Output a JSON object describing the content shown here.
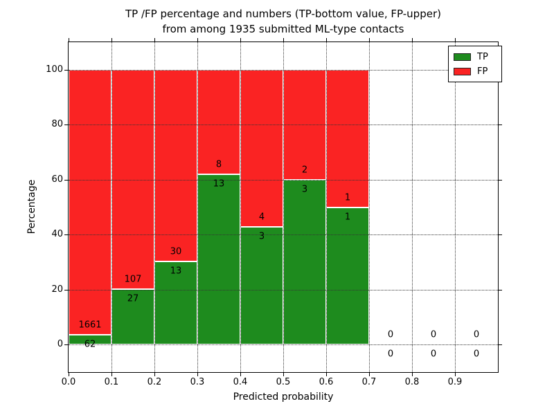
{
  "title": {
    "line1": "TP /FP percentage and numbers (TP-bottom value, FP-upper)",
    "line2": "from among 1935 submitted ML-type contacts"
  },
  "chart_data": {
    "type": "bar",
    "stacked": true,
    "title": "TP /FP percentage and numbers (TP-bottom value, FP-upper) from among 1935 submitted ML-type contacts",
    "xlabel": "Predicted probability",
    "ylabel": "Percentage",
    "bin_width": 0.1,
    "bin_starts": [
      0.0,
      0.1,
      0.2,
      0.3,
      0.4,
      0.5,
      0.6,
      0.7,
      0.8,
      0.9
    ],
    "series": [
      {
        "name": "TP",
        "color": "#1e8b1e",
        "counts": [
          62,
          27,
          13,
          13,
          3,
          3,
          1,
          0,
          0,
          0
        ]
      },
      {
        "name": "FP",
        "color": "#fa2323",
        "counts": [
          1661,
          107,
          30,
          8,
          4,
          2,
          1,
          0,
          0,
          0
        ]
      }
    ],
    "tp_percent": [
      3.6,
      20.1,
      30.2,
      61.9,
      42.9,
      60.0,
      50.0,
      0,
      0,
      0
    ],
    "x_ticks": [
      "0.0",
      "0.1",
      "0.2",
      "0.3",
      "0.4",
      "0.5",
      "0.6",
      "0.7",
      "0.8",
      "0.9"
    ],
    "y_ticks": [
      0,
      20,
      40,
      60,
      80,
      100
    ],
    "xlim": [
      0.0,
      1.0
    ],
    "ylim": [
      -10,
      110
    ],
    "grid": "dotted",
    "legend": {
      "position": "upper right",
      "entries": [
        "TP",
        "FP"
      ]
    }
  }
}
